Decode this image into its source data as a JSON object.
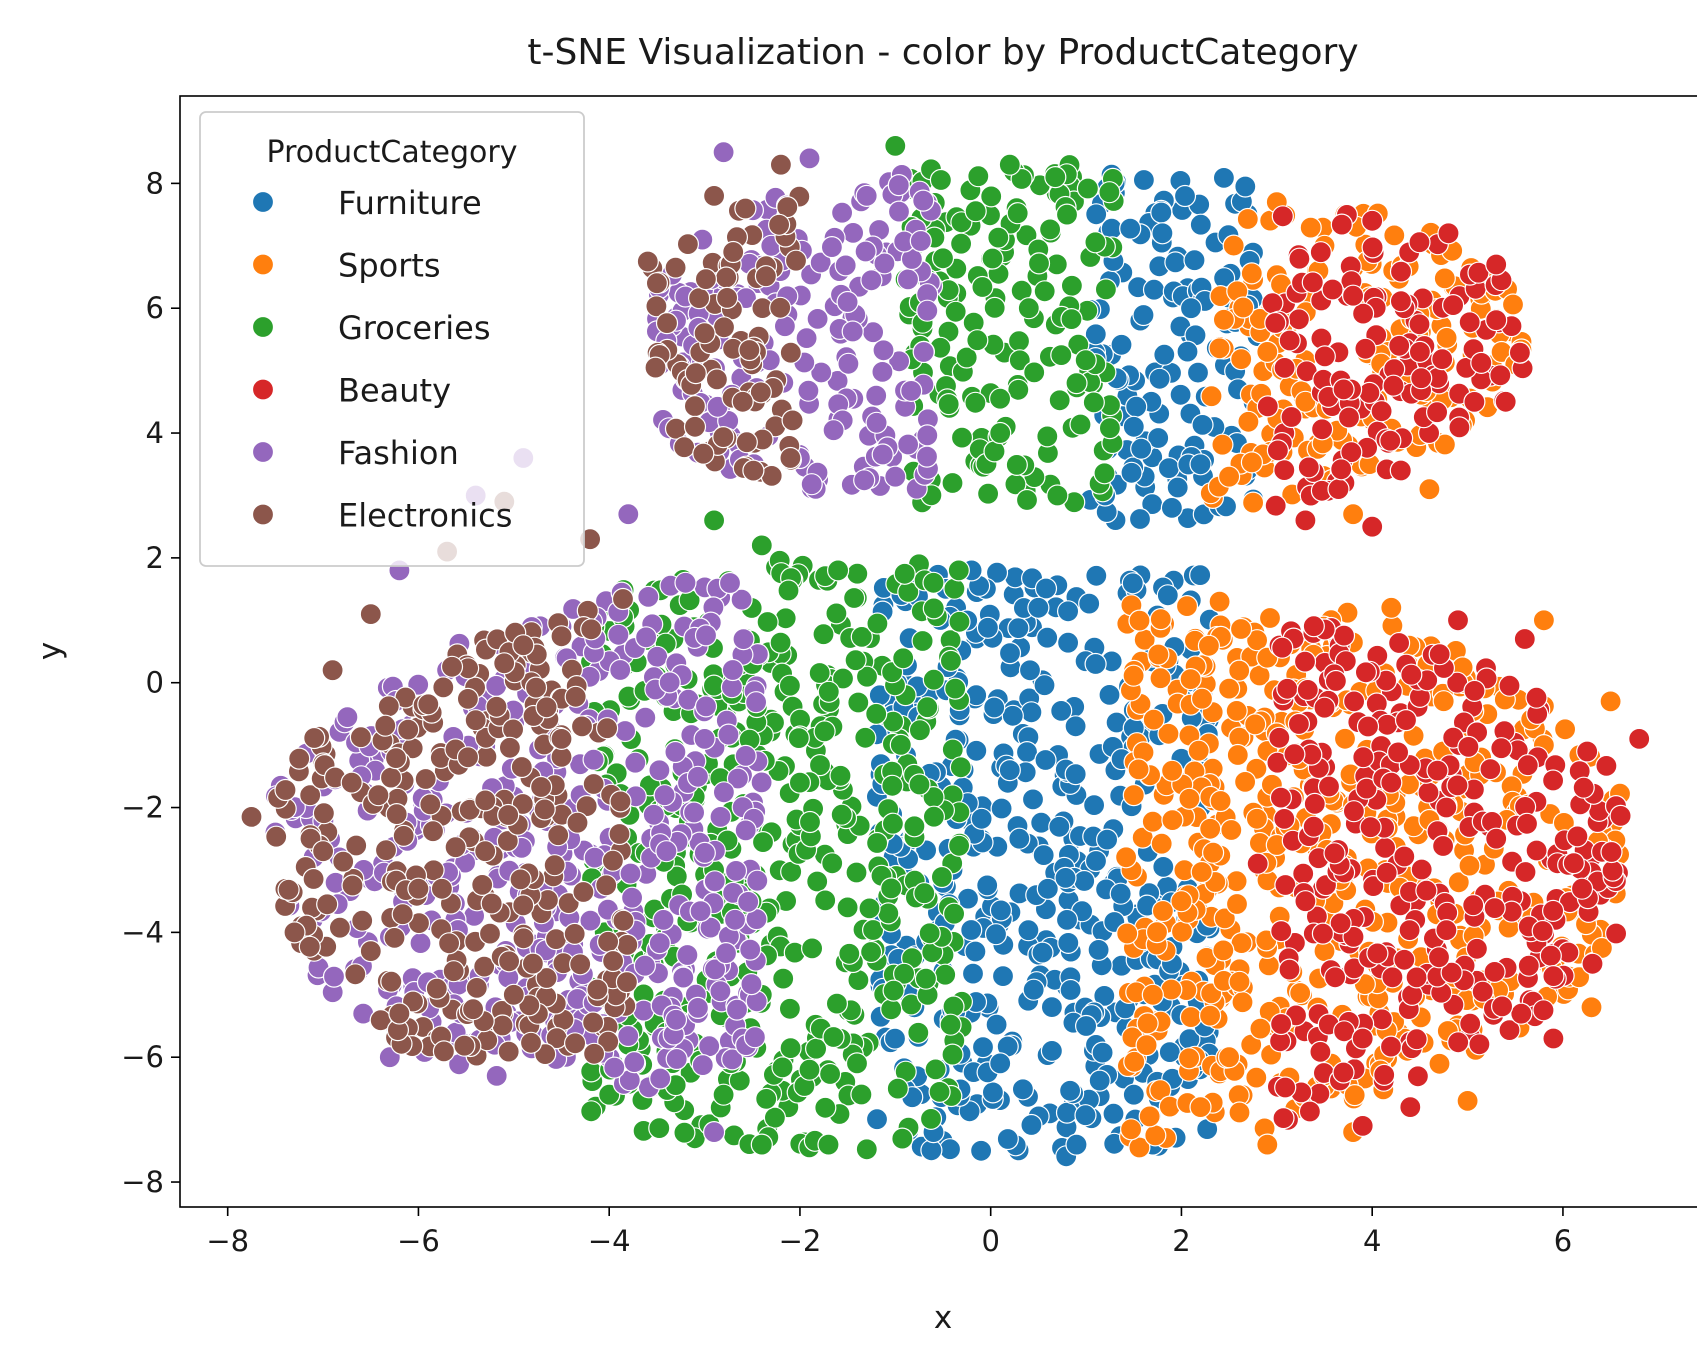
{
  "chart_data": {
    "type": "scatter",
    "title": "t-SNE Visualization - color by ProductCategory",
    "xlabel": "x",
    "ylabel": "y",
    "xlim": [
      -8.5,
      7.5
    ],
    "ylim": [
      -8.4,
      9.4
    ],
    "xticks": [
      -8,
      -6,
      -4,
      -2,
      0,
      2,
      4,
      6
    ],
    "yticks": [
      -8,
      -6,
      -4,
      -2,
      0,
      2,
      4,
      6,
      8
    ],
    "xtick_labels": [
      "−8",
      "−6",
      "−4",
      "−2",
      "0",
      "2",
      "4",
      "6"
    ],
    "ytick_labels": [
      "−8",
      "−6",
      "−4",
      "−2",
      "0",
      "2",
      "4",
      "6",
      "8"
    ],
    "grid": false,
    "legend": {
      "title": "ProductCategory",
      "placement": "top-left",
      "entries": [
        "Furniture",
        "Sports",
        "Groceries",
        "Beauty",
        "Fashion",
        "Electronics"
      ]
    },
    "series": [
      {
        "name": "Furniture",
        "color": "#1f77b4",
        "regions": [
          {
            "x_range": [
              1.0,
              2.8
            ],
            "y_range": [
              2.6,
              8.2
            ]
          },
          {
            "x_range": [
              -1.2,
              2.3
            ],
            "y_range": [
              -7.6,
              1.8
            ]
          }
        ],
        "points": [
          [
            1.3,
            8.0
          ],
          [
            1.8,
            7.2
          ],
          [
            2.1,
            6.0
          ],
          [
            1.1,
            5.2
          ],
          [
            1.5,
            4.1
          ],
          [
            2.2,
            3.5
          ],
          [
            1.9,
            2.8
          ],
          [
            1.2,
            3.0
          ],
          [
            -0.2,
            1.8
          ],
          [
            0.5,
            1.2
          ],
          [
            1.1,
            0.3
          ],
          [
            1.8,
            -0.5
          ],
          [
            2.2,
            -2.0
          ],
          [
            0.2,
            -1.4
          ],
          [
            -0.4,
            -3.0
          ],
          [
            0.8,
            -3.8
          ],
          [
            1.9,
            -4.5
          ],
          [
            -0.8,
            -5.2
          ],
          [
            0.1,
            -6.1
          ],
          [
            1.5,
            -6.6
          ],
          [
            -0.1,
            -7.5
          ],
          [
            -0.6,
            -7.2
          ],
          [
            0.9,
            -7.4
          ],
          [
            1.7,
            -7.4
          ],
          [
            0.3,
            -2.5
          ],
          [
            1.0,
            -5.5
          ]
        ]
      },
      {
        "name": "Sports",
        "color": "#ff7f0e",
        "regions": [
          {
            "x_range": [
              2.3,
              5.6
            ],
            "y_range": [
              2.5,
              7.8
            ]
          },
          {
            "x_range": [
              1.4,
              6.6
            ],
            "y_range": [
              -7.5,
              1.4
            ]
          }
        ],
        "points": [
          [
            3.0,
            7.7
          ],
          [
            3.5,
            7.0
          ],
          [
            2.9,
            5.3
          ],
          [
            2.5,
            3.3
          ],
          [
            3.8,
            2.7
          ],
          [
            4.6,
            3.1
          ],
          [
            5.5,
            5.1
          ],
          [
            3.3,
            4.5
          ],
          [
            2.4,
            1.3
          ],
          [
            2.9,
            0.4
          ],
          [
            4.2,
            1.2
          ],
          [
            5.8,
            1.0
          ],
          [
            6.5,
            -0.3
          ],
          [
            1.5,
            -1.8
          ],
          [
            2.0,
            -3.5
          ],
          [
            3.0,
            -2.6
          ],
          [
            1.7,
            -5.0
          ],
          [
            2.5,
            -6.0
          ],
          [
            2.9,
            -7.4
          ],
          [
            3.8,
            -7.2
          ],
          [
            6.3,
            -5.2
          ],
          [
            5.0,
            -6.7
          ],
          [
            3.5,
            -4.3
          ],
          [
            4.6,
            -2.2
          ],
          [
            5.8,
            -1.0
          ],
          [
            2.2,
            -6.8
          ]
        ]
      },
      {
        "name": "Groceries",
        "color": "#2ca02c",
        "regions": [
          {
            "x_range": [
              -0.9,
              1.3
            ],
            "y_range": [
              2.8,
              8.6
            ]
          },
          {
            "x_range": [
              -4.2,
              -0.3
            ],
            "y_range": [
              -7.5,
              2.3
            ]
          }
        ],
        "points": [
          [
            -1.0,
            8.6
          ],
          [
            0.2,
            8.3
          ],
          [
            0.8,
            7.5
          ],
          [
            -0.5,
            6.8
          ],
          [
            0.4,
            6.0
          ],
          [
            -0.7,
            5.3
          ],
          [
            0.9,
            4.8
          ],
          [
            0.1,
            4.0
          ],
          [
            -0.4,
            3.2
          ],
          [
            0.7,
            3.0
          ],
          [
            -2.9,
            2.6
          ],
          [
            -2.4,
            2.2
          ],
          [
            -1.6,
            1.8
          ],
          [
            -0.6,
            1.6
          ],
          [
            -2.5,
            0.3
          ],
          [
            -1.2,
            -0.5
          ],
          [
            -2.0,
            -1.6
          ],
          [
            -0.8,
            -2.3
          ],
          [
            -2.9,
            -3.0
          ],
          [
            -1.5,
            -3.6
          ],
          [
            -3.2,
            -4.6
          ],
          [
            -2.4,
            -5.0
          ],
          [
            -3.8,
            -5.8
          ],
          [
            -1.9,
            -6.2
          ],
          [
            -2.8,
            -6.6
          ],
          [
            -1.7,
            -7.4
          ],
          [
            -2.4,
            -7.4
          ],
          [
            -4.0,
            -6.6
          ],
          [
            -3.4,
            -5.9
          ]
        ]
      },
      {
        "name": "Beauty",
        "color": "#d62728",
        "regions": [
          {
            "x_range": [
              2.9,
              5.6
            ],
            "y_range": [
              2.4,
              7.5
            ]
          },
          {
            "x_range": [
              3.0,
              6.8
            ],
            "y_range": [
              -7.2,
              1.2
            ]
          }
        ],
        "points": [
          [
            4.0,
            7.4
          ],
          [
            4.8,
            7.2
          ],
          [
            5.3,
            6.7
          ],
          [
            3.8,
            6.2
          ],
          [
            4.5,
            5.3
          ],
          [
            5.4,
            4.5
          ],
          [
            3.7,
            4.7
          ],
          [
            4.3,
            3.4
          ],
          [
            3.3,
            2.6
          ],
          [
            4.0,
            2.5
          ],
          [
            4.9,
            1.0
          ],
          [
            5.6,
            0.7
          ],
          [
            6.8,
            -0.9
          ],
          [
            3.5,
            -0.4
          ],
          [
            4.2,
            -1.6
          ],
          [
            5.3,
            -2.5
          ],
          [
            6.2,
            -3.3
          ],
          [
            3.3,
            -3.5
          ],
          [
            4.7,
            -4.4
          ],
          [
            5.9,
            -4.7
          ],
          [
            3.9,
            -5.7
          ],
          [
            5.9,
            -5.7
          ],
          [
            4.4,
            -6.8
          ],
          [
            3.9,
            -7.1
          ],
          [
            2.8,
            -2.9
          ]
        ]
      },
      {
        "name": "Fashion",
        "color": "#9467bd",
        "regions": [
          {
            "x_range": [
              -3.5,
              -0.6
            ],
            "y_range": [
              3.0,
              8.6
            ]
          },
          {
            "x_range": [
              -7.6,
              -2.4
            ],
            "y_range": [
              -6.5,
              3.6
            ]
          }
        ],
        "points": [
          [
            -2.8,
            8.5
          ],
          [
            -1.9,
            8.4
          ],
          [
            -1.3,
            7.8
          ],
          [
            -2.3,
            7.0
          ],
          [
            -1.5,
            6.1
          ],
          [
            -2.6,
            5.2
          ],
          [
            -1.2,
            4.6
          ],
          [
            -2.0,
            3.6
          ],
          [
            -1.0,
            3.3
          ],
          [
            -3.3,
            5.8
          ],
          [
            -4.9,
            3.6
          ],
          [
            -5.4,
            3.0
          ],
          [
            -3.8,
            2.7
          ],
          [
            -6.2,
            1.8
          ],
          [
            -3.2,
            1.6
          ],
          [
            -4.5,
            0.9
          ],
          [
            -5.7,
            0.2
          ],
          [
            -3.0,
            -0.9
          ],
          [
            -4.3,
            -1.8
          ],
          [
            -7.5,
            -2.4
          ],
          [
            -6.6,
            -1.5
          ],
          [
            -3.4,
            -2.7
          ],
          [
            -4.7,
            -3.3
          ],
          [
            -5.9,
            -4.8
          ],
          [
            -4.1,
            -4.2
          ],
          [
            -5.2,
            -5.8
          ],
          [
            -3.3,
            -5.4
          ],
          [
            -6.3,
            -6.0
          ],
          [
            -2.9,
            -7.2
          ]
        ]
      },
      {
        "name": "Electronics",
        "color": "#8c564b",
        "regions": [
          {
            "x_range": [
              -3.6,
              -2.0
            ],
            "y_range": [
              3.2,
              8.4
            ]
          },
          {
            "x_range": [
              -7.5,
              -3.8
            ],
            "y_range": [
              -6.0,
              3.0
            ]
          }
        ],
        "points": [
          [
            -2.2,
            8.3
          ],
          [
            -2.9,
            7.8
          ],
          [
            -3.5,
            6.4
          ],
          [
            -3.0,
            5.6
          ],
          [
            -2.6,
            4.5
          ],
          [
            -3.1,
            4.1
          ],
          [
            -2.1,
            3.6
          ],
          [
            -2.7,
            6.9
          ],
          [
            -5.1,
            2.9
          ],
          [
            -5.7,
            2.1
          ],
          [
            -4.2,
            2.3
          ],
          [
            -6.5,
            1.1
          ],
          [
            -4.9,
            0.6
          ],
          [
            -6.9,
            0.2
          ],
          [
            -5.4,
            -0.6
          ],
          [
            -4.5,
            -0.9
          ],
          [
            -6.7,
            -1.6
          ],
          [
            -7.0,
            -2.7
          ],
          [
            -5.3,
            -2.7
          ],
          [
            -6.0,
            -3.3
          ],
          [
            -7.3,
            -4.0
          ],
          [
            -6.5,
            -4.3
          ],
          [
            -4.8,
            -4.5
          ],
          [
            -6.2,
            -5.3
          ],
          [
            -5.0,
            -5.0
          ],
          [
            -7.75,
            -2.15
          ]
        ]
      }
    ]
  }
}
